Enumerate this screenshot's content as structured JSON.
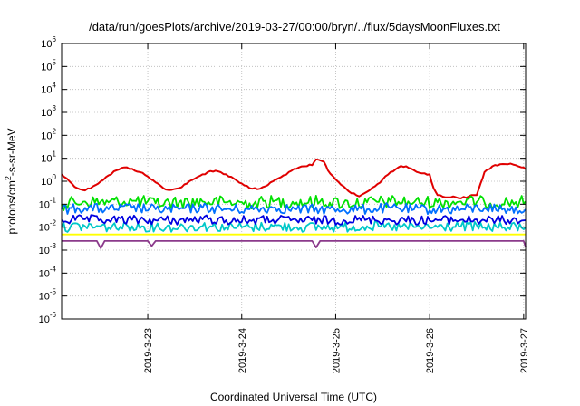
{
  "chart_data": {
    "type": "line",
    "title": "/data/run/goesPlots/archive/2019-03-27/00:00/bryn/../flux/5daysMoonFluxes.txt",
    "xlabel": "Coordinated Universal Time (UTC)",
    "ylabel": "protons/cm²-s-sr-MeV",
    "ylabel_parts": {
      "pre": "protons/cm",
      "sup": "2",
      "post": "-s-sr-MeV"
    },
    "y_scale": "log",
    "ylim": [
      1e-06,
      1000000
    ],
    "y_ticks": [
      {
        "base": "10",
        "exp": "-6",
        "value": 1e-06
      },
      {
        "base": "10",
        "exp": "-5",
        "value": 1e-05
      },
      {
        "base": "10",
        "exp": "-4",
        "value": 0.0001
      },
      {
        "base": "10",
        "exp": "-3",
        "value": 0.001
      },
      {
        "base": "10",
        "exp": "-2",
        "value": 0.01
      },
      {
        "base": "10",
        "exp": "-1",
        "value": 0.1
      },
      {
        "base": "10",
        "exp": "0",
        "value": 1
      },
      {
        "base": "10",
        "exp": "1",
        "value": 10
      },
      {
        "base": "10",
        "exp": "2",
        "value": 100
      },
      {
        "base": "10",
        "exp": "3",
        "value": 1000
      },
      {
        "base": "10",
        "exp": "4",
        "value": 10000
      },
      {
        "base": "10",
        "exp": "5",
        "value": 100000
      },
      {
        "base": "10",
        "exp": "6",
        "value": 1000000
      }
    ],
    "x_ticks": [
      "2019-3-23",
      "2019-3-24",
      "2019-3-25",
      "2019-3-26",
      "2019-3-27"
    ],
    "xlim": [
      "2019-03-22T02:00",
      "2019-03-27T00:30"
    ],
    "grid": true,
    "series": [
      {
        "color": "#e00000",
        "points": [
          [
            "2019-03-22T02:00",
            2.0
          ],
          [
            "2019-03-22T04:00",
            1.0
          ],
          [
            "2019-03-22T06:00",
            0.5
          ],
          [
            "2019-03-22T08:00",
            0.4
          ],
          [
            "2019-03-22T10:00",
            0.6
          ],
          [
            "2019-03-22T12:00",
            1.0
          ],
          [
            "2019-03-22T14:00",
            1.8
          ],
          [
            "2019-03-22T16:00",
            3.0
          ],
          [
            "2019-03-22T18:00",
            4.0
          ],
          [
            "2019-03-22T20:00",
            3.5
          ],
          [
            "2019-03-22T22:00",
            2.5
          ],
          [
            "2019-03-23T00:00",
            1.6
          ],
          [
            "2019-03-23T02:00",
            0.9
          ],
          [
            "2019-03-23T04:00",
            0.5
          ],
          [
            "2019-03-23T06:00",
            0.42
          ],
          [
            "2019-03-23T08:00",
            0.5
          ],
          [
            "2019-03-23T10:00",
            0.8
          ],
          [
            "2019-03-23T12:00",
            1.3
          ],
          [
            "2019-03-23T14:00",
            2.0
          ],
          [
            "2019-03-23T16:00",
            2.8
          ],
          [
            "2019-03-23T18:00",
            2.7
          ],
          [
            "2019-03-23T20:00",
            2.0
          ],
          [
            "2019-03-23T22:00",
            1.3
          ],
          [
            "2019-03-24T00:00",
            0.8
          ],
          [
            "2019-03-24T02:00",
            0.5
          ],
          [
            "2019-03-24T04:00",
            0.45
          ],
          [
            "2019-03-24T06:00",
            0.6
          ],
          [
            "2019-03-24T08:00",
            1.0
          ],
          [
            "2019-03-24T10:00",
            1.5
          ],
          [
            "2019-03-24T12:00",
            2.5
          ],
          [
            "2019-03-24T14:00",
            3.5
          ],
          [
            "2019-03-24T16:00",
            4.5
          ],
          [
            "2019-03-24T18:00",
            5.0
          ],
          [
            "2019-03-24T19:00",
            9.0
          ],
          [
            "2019-03-24T21:00",
            7.0
          ],
          [
            "2019-03-24T22:00",
            3.0
          ],
          [
            "2019-03-25T00:00",
            1.2
          ],
          [
            "2019-03-25T02:00",
            0.6
          ],
          [
            "2019-03-25T04:00",
            0.3
          ],
          [
            "2019-03-25T06:00",
            0.22
          ],
          [
            "2019-03-25T08:00",
            0.35
          ],
          [
            "2019-03-25T10:00",
            0.6
          ],
          [
            "2019-03-25T12:00",
            1.2
          ],
          [
            "2019-03-25T14:00",
            2.5
          ],
          [
            "2019-03-25T16:00",
            4.0
          ],
          [
            "2019-03-25T18:00",
            4.5
          ],
          [
            "2019-03-25T20:00",
            3.0
          ],
          [
            "2019-03-25T22:00",
            2.2
          ],
          [
            "2019-03-26T00:00",
            2.0
          ],
          [
            "2019-03-26T01:00",
            0.5
          ],
          [
            "2019-03-26T02:00",
            0.25
          ],
          [
            "2019-03-26T04:00",
            0.2
          ],
          [
            "2019-03-26T06:00",
            0.22
          ],
          [
            "2019-03-26T08:00",
            0.18
          ],
          [
            "2019-03-26T10:00",
            0.22
          ],
          [
            "2019-03-26T12:00",
            0.25
          ],
          [
            "2019-03-26T13:00",
            0.8
          ],
          [
            "2019-03-26T14:00",
            2.5
          ],
          [
            "2019-03-26T16:00",
            4.5
          ],
          [
            "2019-03-26T18:00",
            5.5
          ],
          [
            "2019-03-26T20:00",
            5.5
          ],
          [
            "2019-03-26T22:00",
            5.0
          ],
          [
            "2019-03-27T00:00",
            4.0
          ],
          [
            "2019-03-27T00:30",
            3.5
          ]
        ]
      },
      {
        "color": "#00e000",
        "base_value": 0.12,
        "points": [
          [
            "2019-03-22T02:00",
            0.1
          ],
          [
            "2019-03-22T08:00",
            0.13
          ],
          [
            "2019-03-22T14:00",
            0.12
          ],
          [
            "2019-03-22T20:00",
            0.14
          ],
          [
            "2019-03-23T02:00",
            0.11
          ],
          [
            "2019-03-23T08:00",
            0.12
          ],
          [
            "2019-03-23T14:00",
            0.13
          ],
          [
            "2019-03-23T20:00",
            0.12
          ],
          [
            "2019-03-24T02:00",
            0.11
          ],
          [
            "2019-03-24T08:00",
            0.13
          ],
          [
            "2019-03-24T14:00",
            0.12
          ],
          [
            "2019-03-24T20:00",
            0.13
          ],
          [
            "2019-03-25T02:00",
            0.11
          ],
          [
            "2019-03-25T08:00",
            0.12
          ],
          [
            "2019-03-25T14:00",
            0.13
          ],
          [
            "2019-03-25T20:00",
            0.12
          ],
          [
            "2019-03-26T02:00",
            0.12
          ],
          [
            "2019-03-26T08:00",
            0.13
          ],
          [
            "2019-03-26T14:00",
            0.12
          ],
          [
            "2019-03-26T20:00",
            0.12
          ],
          [
            "2019-03-27T00:30",
            0.13
          ]
        ]
      },
      {
        "color": "#0070ff",
        "points": [
          [
            "2019-03-22T02:00",
            0.06
          ],
          [
            "2019-03-22T08:00",
            0.07
          ],
          [
            "2019-03-22T14:00",
            0.06
          ],
          [
            "2019-03-22T20:00",
            0.07
          ],
          [
            "2019-03-23T02:00",
            0.06
          ],
          [
            "2019-03-23T08:00",
            0.06
          ],
          [
            "2019-03-23T14:00",
            0.07
          ],
          [
            "2019-03-23T20:00",
            0.06
          ],
          [
            "2019-03-24T02:00",
            0.06
          ],
          [
            "2019-03-24T08:00",
            0.07
          ],
          [
            "2019-03-24T14:00",
            0.06
          ],
          [
            "2019-03-24T20:00",
            0.06
          ],
          [
            "2019-03-25T02:00",
            0.06
          ],
          [
            "2019-03-25T08:00",
            0.06
          ],
          [
            "2019-03-25T14:00",
            0.07
          ],
          [
            "2019-03-25T20:00",
            0.06
          ],
          [
            "2019-03-26T02:00",
            0.06
          ],
          [
            "2019-03-26T08:00",
            0.06
          ],
          [
            "2019-03-26T14:00",
            0.07
          ],
          [
            "2019-03-26T20:00",
            0.06
          ],
          [
            "2019-03-27T00:30",
            0.06
          ]
        ]
      },
      {
        "color": "#00c8c8",
        "points": [
          [
            "2019-03-22T02:00",
            0.01
          ],
          [
            "2019-03-22T08:00",
            0.011
          ],
          [
            "2019-03-22T14:00",
            0.01
          ],
          [
            "2019-03-22T20:00",
            0.011
          ],
          [
            "2019-03-23T02:00",
            0.01
          ],
          [
            "2019-03-23T08:00",
            0.01
          ],
          [
            "2019-03-23T14:00",
            0.011
          ],
          [
            "2019-03-23T20:00",
            0.01
          ],
          [
            "2019-03-24T02:00",
            0.01
          ],
          [
            "2019-03-24T08:00",
            0.011
          ],
          [
            "2019-03-24T14:00",
            0.01
          ],
          [
            "2019-03-24T20:00",
            0.01
          ],
          [
            "2019-03-25T02:00",
            0.01
          ],
          [
            "2019-03-25T08:00",
            0.011
          ],
          [
            "2019-03-25T14:00",
            0.01
          ],
          [
            "2019-03-25T20:00",
            0.01
          ],
          [
            "2019-03-26T02:00",
            0.01
          ],
          [
            "2019-03-26T08:00",
            0.011
          ],
          [
            "2019-03-26T14:00",
            0.01
          ],
          [
            "2019-03-26T20:00",
            0.01
          ],
          [
            "2019-03-27T00:30",
            0.01
          ]
        ]
      },
      {
        "color": "#0000e0",
        "points": [
          [
            "2019-03-22T02:00",
            0.02
          ],
          [
            "2019-03-22T08:00",
            0.022
          ],
          [
            "2019-03-22T14:00",
            0.02
          ],
          [
            "2019-03-22T20:00",
            0.021
          ],
          [
            "2019-03-23T02:00",
            0.02
          ],
          [
            "2019-03-23T08:00",
            0.02
          ],
          [
            "2019-03-23T14:00",
            0.022
          ],
          [
            "2019-03-23T20:00",
            0.02
          ],
          [
            "2019-03-24T02:00",
            0.02
          ],
          [
            "2019-03-24T08:00",
            0.021
          ],
          [
            "2019-03-24T14:00",
            0.02
          ],
          [
            "2019-03-24T20:00",
            0.02
          ],
          [
            "2019-03-25T02:00",
            0.02
          ],
          [
            "2019-03-25T08:00",
            0.022
          ],
          [
            "2019-03-25T14:00",
            0.02
          ],
          [
            "2019-03-25T20:00",
            0.02
          ],
          [
            "2019-03-26T02:00",
            0.02
          ],
          [
            "2019-03-26T08:00",
            0.021
          ],
          [
            "2019-03-26T14:00",
            0.02
          ],
          [
            "2019-03-26T20:00",
            0.02
          ],
          [
            "2019-03-27T00:30",
            0.02
          ]
        ]
      },
      {
        "color": "#ffff00",
        "points": [
          [
            "2019-03-22T02:00",
            0.0048
          ],
          [
            "2019-03-23T02:00",
            0.0048
          ],
          [
            "2019-03-24T02:00",
            0.0048
          ],
          [
            "2019-03-25T02:00",
            0.0048
          ],
          [
            "2019-03-26T02:00",
            0.0048
          ],
          [
            "2019-03-27T00:30",
            0.0048
          ]
        ]
      },
      {
        "color": "#8b3a8b",
        "points": [
          [
            "2019-03-22T02:00",
            0.0025
          ],
          [
            "2019-03-22T11:00",
            0.0025
          ],
          [
            "2019-03-22T12:00",
            0.0012
          ],
          [
            "2019-03-22T13:00",
            0.0025
          ],
          [
            "2019-03-23T00:00",
            0.0025
          ],
          [
            "2019-03-23T01:00",
            0.0015
          ],
          [
            "2019-03-23T02:00",
            0.0025
          ],
          [
            "2019-03-24T18:00",
            0.0025
          ],
          [
            "2019-03-24T19:00",
            0.0013
          ],
          [
            "2019-03-24T20:00",
            0.0025
          ],
          [
            "2019-03-27T00:00",
            0.0025
          ],
          [
            "2019-03-27T00:30",
            0.0014
          ]
        ]
      }
    ]
  }
}
